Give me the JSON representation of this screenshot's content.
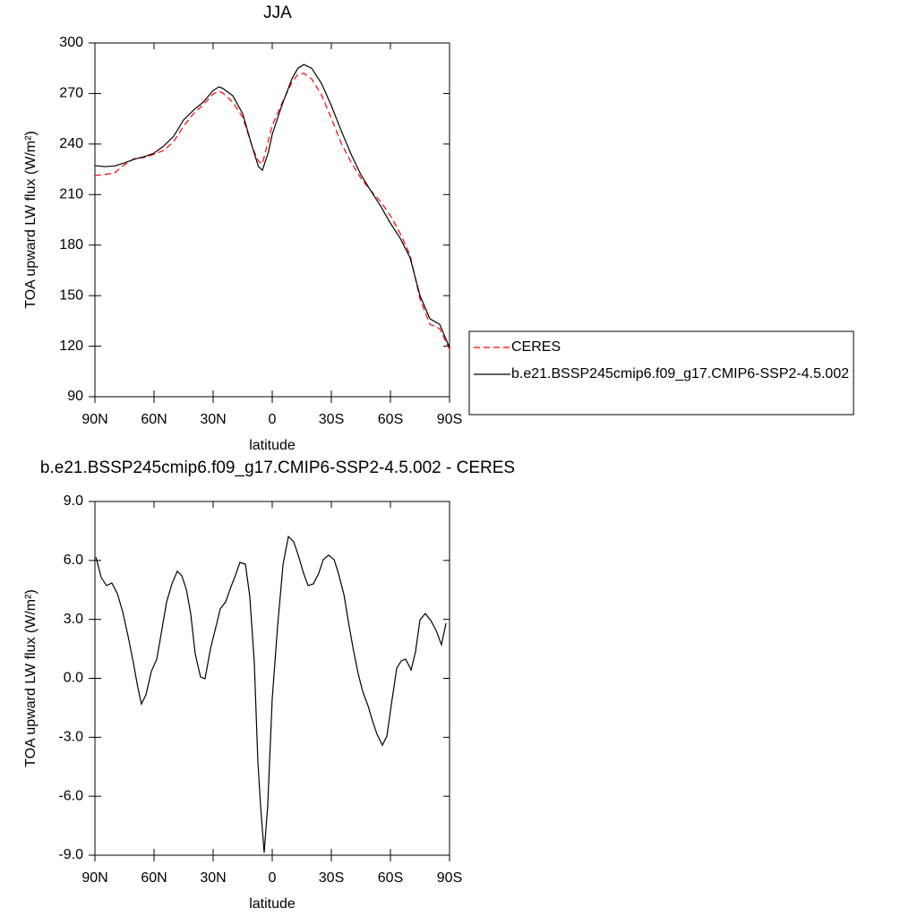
{
  "chart_data": [
    {
      "type": "line",
      "title": "JJA",
      "xlabel": "latitude",
      "ylabel": "TOA upward LW flux (W/m²)",
      "xlim": [
        90,
        -90
      ],
      "xticks": [
        {
          "value": 90,
          "label": "90N"
        },
        {
          "value": 60,
          "label": "60N"
        },
        {
          "value": 30,
          "label": "30N"
        },
        0,
        {
          "value": -30,
          "label": "30S"
        },
        {
          "value": -60,
          "label": "60S"
        },
        {
          "value": -90,
          "label": "90S"
        }
      ],
      "ylim": [
        90,
        300
      ],
      "yticks": [
        90,
        120,
        150,
        180,
        210,
        240,
        270,
        300
      ],
      "legend": "right",
      "x": [
        90,
        85,
        80,
        75,
        70,
        65,
        60,
        55,
        50,
        45,
        40,
        35,
        30,
        27,
        25,
        20,
        15,
        10,
        7,
        5,
        2,
        0,
        -5,
        -10,
        -13,
        -16,
        -20,
        -25,
        -30,
        -35,
        -40,
        -45,
        -50,
        -55,
        -60,
        -65,
        -70,
        -75,
        -80,
        -85,
        -90
      ],
      "series": [
        {
          "name": "CERES",
          "color": "#ff0000",
          "linestyle": "dashed",
          "values": [
            221.3,
            221.9,
            222.9,
            227.7,
            231.4,
            232,
            234,
            236.2,
            241.5,
            250.6,
            258,
            263.3,
            269.7,
            271.3,
            270.2,
            264.9,
            255.9,
            237.8,
            229.8,
            228.2,
            242,
            251,
            264.4,
            276.6,
            281.4,
            282,
            278.7,
            269.2,
            255.3,
            240.5,
            229.3,
            219.7,
            212.3,
            205.9,
            197.4,
            186.8,
            174,
            148,
            133,
            130.4,
            118.2
          ]
        },
        {
          "name": "b.e21.BSSP245cmip6.f09_g17.CMIP6-SSP2-4.5.002",
          "color": "#000000",
          "linestyle": "solid",
          "values": [
            227.2,
            226.6,
            227,
            228.8,
            231,
            232.5,
            234.6,
            238.9,
            244.7,
            254.3,
            260.1,
            264.9,
            271.8,
            274,
            273,
            268.6,
            258,
            237.8,
            226.6,
            224.5,
            235,
            245.8,
            263.3,
            278.7,
            285,
            287.2,
            285,
            276,
            262.8,
            248,
            234,
            221.8,
            212.3,
            203.2,
            193,
            184,
            172.4,
            150,
            136.3,
            133,
            119.2
          ]
        }
      ]
    },
    {
      "type": "line",
      "title": "b.e21.BSSP245cmip6.f09_g17.CMIP6-SSP2-4.5.002 - CERES",
      "xlabel": "latitude",
      "ylabel": "TOA upward LW flux (W/m²)",
      "xlim": [
        90,
        -90
      ],
      "xticks": [
        {
          "value": 90,
          "label": "90N"
        },
        {
          "value": 60,
          "label": "60N"
        },
        {
          "value": 30,
          "label": "30N"
        },
        0,
        {
          "value": -30,
          "label": "30S"
        },
        {
          "value": -60,
          "label": "60S"
        },
        {
          "value": -90,
          "label": "90S"
        }
      ],
      "ylim": [
        -9,
        9
      ],
      "yticks": [
        {
          "value": -9,
          "label": "-9.0"
        },
        {
          "value": -6,
          "label": "-6.0"
        },
        {
          "value": -3,
          "label": "-3.0"
        },
        {
          "value": 0,
          "label": "0.0"
        },
        {
          "value": 3,
          "label": "3.0"
        },
        {
          "value": 6,
          "label": "6.0"
        },
        {
          "value": 9,
          "label": "9.0"
        }
      ],
      "x": [
        89.5,
        86.8,
        84.1,
        81.4,
        78.6,
        75.9,
        73.2,
        70.5,
        68.2,
        66.4,
        64.1,
        61.4,
        58.6,
        56.4,
        53.6,
        50.9,
        48.2,
        45.9,
        43.6,
        41.4,
        39.1,
        36.4,
        34.1,
        31.4,
        28.6,
        26.4,
        23.6,
        20.9,
        18.6,
        16.4,
        13.6,
        11.4,
        9.1,
        7.3,
        5.9,
        4.1,
        2.3,
        0,
        -2.7,
        -5.5,
        -8.2,
        -10.9,
        -13.2,
        -15.9,
        -18.2,
        -20.9,
        -23.6,
        -25.9,
        -28.6,
        -31.4,
        -33.6,
        -36.4,
        -39.1,
        -41.4,
        -43.6,
        -45.9,
        -48.6,
        -50.9,
        -53.2,
        -55.9,
        -58.2,
        -60.5,
        -63.2,
        -65.5,
        -67.7,
        -70.5,
        -72.7,
        -75,
        -77.7,
        -80.5,
        -83.2,
        -85.9,
        -88.2
      ],
      "series": [
        {
          "color": "#000000",
          "linestyle": "solid",
          "values": [
            6.17,
            5.13,
            4.72,
            4.85,
            4.31,
            3.39,
            2.16,
            0.8,
            -0.48,
            -1.3,
            -0.84,
            0.34,
            0.98,
            2.25,
            3.9,
            4.81,
            5.45,
            5.22,
            4.53,
            3.3,
            1.25,
            0.07,
            -0.02,
            1.48,
            2.62,
            3.53,
            3.9,
            4.67,
            5.26,
            5.9,
            5.81,
            4.17,
            0.8,
            -4.22,
            -6.5,
            -8.87,
            -6.5,
            -1.03,
            2.62,
            5.81,
            7.22,
            6.95,
            6.27,
            5.35,
            4.72,
            4.81,
            5.35,
            6.04,
            6.27,
            6.04,
            5.35,
            4.26,
            2.62,
            1.34,
            0.25,
            -0.66,
            -1.39,
            -2.17,
            -2.85,
            -3.4,
            -2.94,
            -1.3,
            0.52,
            0.89,
            0.98,
            0.43,
            1.34,
            2.98,
            3.3,
            2.94,
            2.44,
            1.71,
            2.8
          ]
        }
      ]
    }
  ]
}
